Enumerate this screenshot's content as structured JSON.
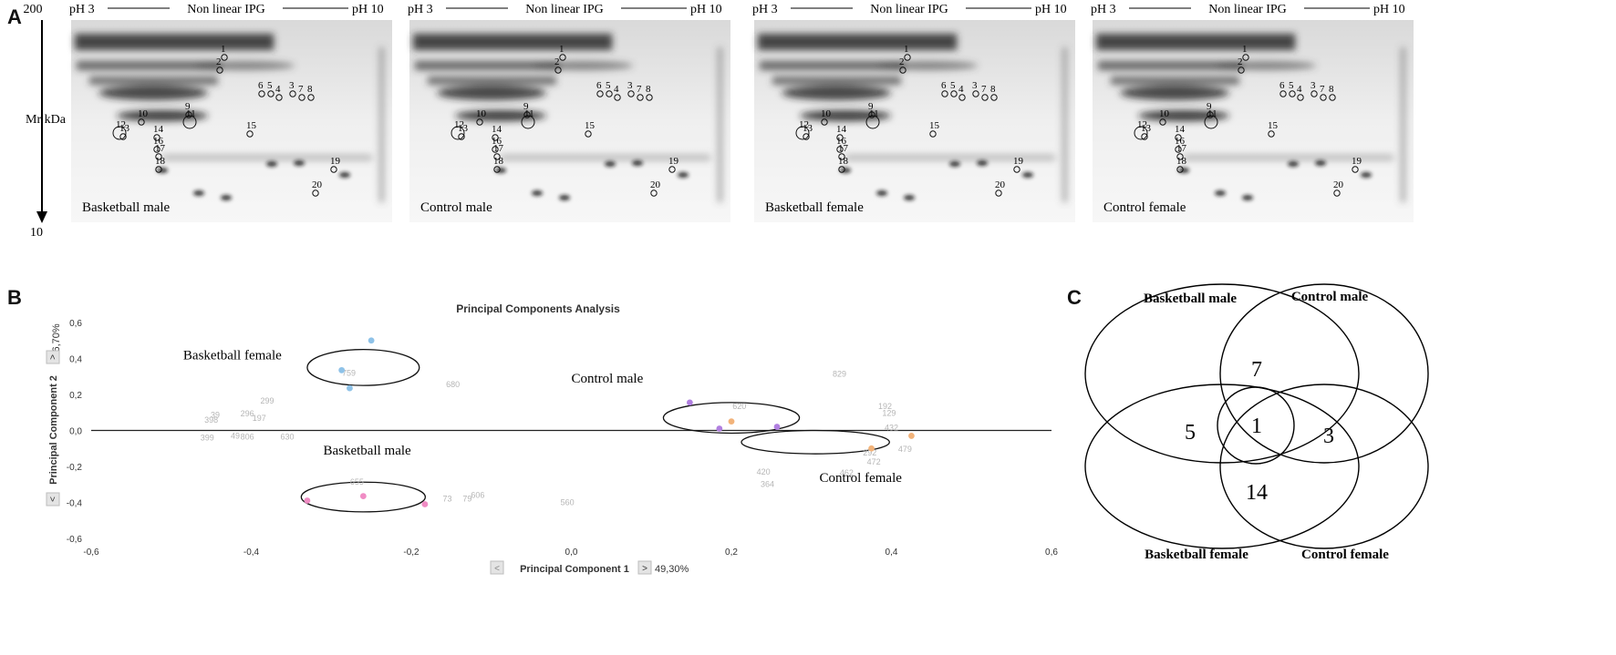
{
  "panel_a": {
    "letter": "A",
    "y_top": "200",
    "y_bottom": "10",
    "y_label": "Mr kDa",
    "ph_left": "pH 3",
    "ph_mid": "Non linear IPG",
    "ph_right": "pH 10",
    "gels": [
      {
        "label": "Basketball  male"
      },
      {
        "label": "Control male"
      },
      {
        "label": "Basketball female"
      },
      {
        "label": "Control female"
      }
    ]
  },
  "panel_b": {
    "letter": "B"
  },
  "panel_c": {
    "letter": "C",
    "sets": [
      "Basketball male",
      "Control male",
      "Basketball female",
      "Control female"
    ],
    "regions": {
      "bm_cm": "7",
      "bm_bf": "5",
      "all": "1",
      "cm_cf": "3",
      "bf_cf": "14"
    }
  },
  "chart_data": {
    "type": "scatter",
    "title": "Principal Components Analysis",
    "xlabel": "Principal Component 1",
    "xlabel_pct": "49,30%",
    "ylabel": "Principal Component 2",
    "ylabel_pct": "16,70%",
    "xlim": [
      -0.6,
      0.6
    ],
    "ylim": [
      -0.6,
      0.6
    ],
    "xticks": [
      "-0,6",
      "-0,4",
      "-0,2",
      "0,0",
      "0,2",
      "0,4",
      "0,6"
    ],
    "yticks": [
      "0,6",
      "0,4",
      "0,2",
      "0,0",
      "-0,2",
      "-0,4",
      "-0,6"
    ],
    "series": [
      {
        "name": "Basketball female",
        "color": "#8ec2e8",
        "points": [
          [
            -0.25,
            0.5
          ],
          [
            -0.287,
            0.335
          ],
          [
            -0.277,
            0.235
          ]
        ]
      },
      {
        "name": "Control male",
        "color": "#b07fe0",
        "points": [
          [
            0.148,
            0.155
          ],
          [
            0.185,
            0.01
          ],
          [
            0.257,
            0.02
          ]
        ]
      },
      {
        "name": "Control female",
        "color": "#f2b37a",
        "points": [
          [
            0.2,
            0.05
          ],
          [
            0.375,
            -0.1
          ],
          [
            0.425,
            -0.03
          ]
        ]
      },
      {
        "name": "Basketball male",
        "color": "#f08cc4",
        "points": [
          [
            -0.33,
            -0.39
          ],
          [
            -0.26,
            -0.365
          ],
          [
            -0.183,
            -0.41
          ]
        ]
      }
    ],
    "group_labels": [
      "Basketball  female",
      "Control male",
      "Control female",
      "Basketball male"
    ],
    "annotations": [
      {
        "text": "759",
        "x": -0.278,
        "y": 0.305
      },
      {
        "text": "680",
        "x": -0.148,
        "y": 0.24
      },
      {
        "text": "299",
        "x": -0.38,
        "y": 0.15
      },
      {
        "text": "39",
        "x": -0.445,
        "y": 0.07
      },
      {
        "text": "296",
        "x": -0.405,
        "y": 0.078
      },
      {
        "text": "398",
        "x": -0.45,
        "y": 0.042
      },
      {
        "text": "197",
        "x": -0.39,
        "y": 0.052
      },
      {
        "text": "399",
        "x": -0.455,
        "y": -0.055
      },
      {
        "text": "49",
        "x": -0.42,
        "y": -0.045
      },
      {
        "text": "806",
        "x": -0.405,
        "y": -0.05
      },
      {
        "text": "630",
        "x": -0.355,
        "y": -0.05
      },
      {
        "text": "620",
        "x": 0.21,
        "y": 0.12
      },
      {
        "text": "829",
        "x": 0.335,
        "y": 0.3
      },
      {
        "text": "192",
        "x": 0.392,
        "y": 0.12
      },
      {
        "text": "129",
        "x": 0.397,
        "y": 0.08
      },
      {
        "text": "432",
        "x": 0.4,
        "y": 0.0
      },
      {
        "text": "479",
        "x": 0.417,
        "y": -0.12
      },
      {
        "text": "292",
        "x": 0.373,
        "y": -0.14
      },
      {
        "text": "472",
        "x": 0.378,
        "y": -0.19
      },
      {
        "text": "462",
        "x": 0.344,
        "y": -0.25
      },
      {
        "text": "420",
        "x": 0.24,
        "y": -0.245
      },
      {
        "text": "364",
        "x": 0.245,
        "y": -0.315
      },
      {
        "text": "655",
        "x": -0.268,
        "y": -0.3
      },
      {
        "text": "73",
        "x": -0.155,
        "y": -0.395
      },
      {
        "text": "79",
        "x": -0.13,
        "y": -0.395
      },
      {
        "text": "606",
        "x": -0.117,
        "y": -0.375
      },
      {
        "text": "560",
        "x": -0.005,
        "y": -0.415
      }
    ],
    "ellipses": [
      {
        "group": "Basketball female",
        "cx": -0.26,
        "cy": 0.35,
        "rx": 0.14,
        "ry": 0.2
      },
      {
        "group": "Control male",
        "cx": 0.2,
        "cy": 0.07,
        "rx": 0.17,
        "ry": 0.17
      },
      {
        "group": "Control female",
        "cx": 0.305,
        "cy": -0.065,
        "rx": 0.185,
        "ry": 0.13
      },
      {
        "group": "Basketball male",
        "cx": -0.26,
        "cy": -0.37,
        "rx": 0.155,
        "ry": 0.165
      }
    ]
  }
}
